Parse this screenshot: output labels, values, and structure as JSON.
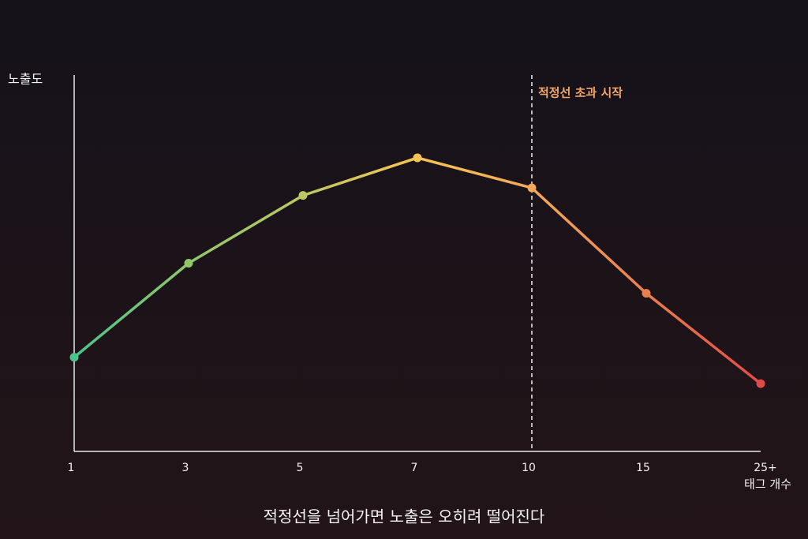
{
  "chart_data": {
    "type": "line",
    "title": "적정선을 넘어가면 노출은 오히려 떨어진다",
    "y_label": "노출도",
    "x_label": "태그 개수",
    "categories": [
      "1",
      "3",
      "5",
      "7",
      "10",
      "15",
      "25+"
    ],
    "values": [
      25,
      50,
      68,
      78,
      70,
      42,
      18
    ],
    "colors": [
      "#4cc38a",
      "#8fc66a",
      "#bcc862",
      "#f6c452",
      "#f4a85a",
      "#ea7f4e",
      "#e24a48"
    ],
    "ylim": [
      0,
      100
    ],
    "annotation": {
      "text": "적정선 초과 시작",
      "at": "10",
      "color": "#f3a566"
    }
  }
}
